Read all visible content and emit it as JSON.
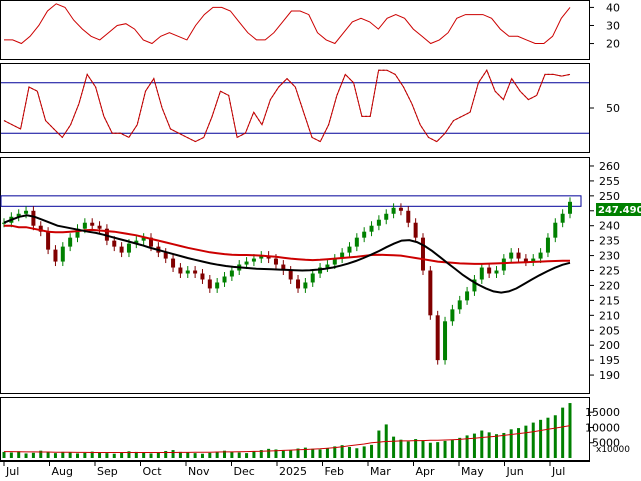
{
  "chart_data": {
    "type": "candlestick",
    "colors": {
      "up": "#008000",
      "down": "#800000",
      "ma_short": "#cc0000",
      "ma_long": "#000000",
      "indicator": "#cc0000",
      "bands": "#000099",
      "price_label_bg": "#008000",
      "price_label_text": "#ffffff",
      "grid": "#000000"
    },
    "months": [
      "Jul",
      "Aug",
      "Sep",
      "Oct",
      "Nov",
      "Dec",
      "2025",
      "Feb",
      "Mar",
      "Apr",
      "May",
      "Jun",
      "Jul"
    ],
    "last_price": "247.4900",
    "panels": {
      "rsi_top": {
        "ticks": [
          20,
          30,
          40
        ],
        "ylim": [
          12,
          43
        ],
        "values": [
          22,
          22,
          20,
          24,
          30,
          38,
          42,
          40,
          33,
          28,
          24,
          22,
          26,
          30,
          31,
          28,
          22,
          20,
          24,
          26,
          24,
          22,
          30,
          36,
          40,
          40,
          38,
          32,
          26,
          22,
          22,
          26,
          32,
          38,
          38,
          36,
          26,
          22,
          20,
          26,
          32,
          34,
          32,
          28,
          34,
          36,
          34,
          28,
          24,
          20,
          22,
          26,
          34,
          36,
          36,
          36,
          34,
          28,
          24,
          24,
          22,
          20,
          20,
          24,
          34,
          40
        ]
      },
      "stoch": {
        "ticks": [
          50
        ],
        "ylim": [
          0,
          100
        ],
        "bands": [
          80,
          20
        ],
        "values": [
          35,
          30,
          25,
          75,
          70,
          35,
          25,
          15,
          30,
          55,
          90,
          75,
          40,
          20,
          20,
          15,
          30,
          70,
          85,
          50,
          25,
          20,
          15,
          10,
          15,
          40,
          70,
          65,
          15,
          20,
          45,
          30,
          60,
          75,
          85,
          75,
          45,
          15,
          10,
          30,
          65,
          90,
          80,
          40,
          40,
          95,
          95,
          90,
          75,
          55,
          30,
          15,
          10,
          20,
          35,
          40,
          45,
          80,
          95,
          70,
          60,
          85,
          70,
          60,
          65,
          90,
          90,
          88,
          90
        ]
      },
      "price": {
        "ticks": [
          190,
          195,
          200,
          205,
          210,
          215,
          220,
          225,
          230,
          235,
          240,
          245,
          250,
          255,
          260
        ],
        "ylim": [
          185,
          262
        ],
        "resistance_band": [
          246.5,
          250
        ],
        "ohlc_scale_note": "",
        "closes": [
          241,
          243,
          244,
          245,
          240,
          238,
          232,
          228,
          233,
          236,
          239,
          241,
          240,
          239,
          235,
          233,
          231,
          234,
          235,
          236,
          233,
          231,
          229,
          226,
          224,
          225,
          224,
          222,
          219,
          221,
          223,
          225,
          227,
          228,
          229,
          230,
          229,
          227,
          225,
          222,
          219,
          221,
          224,
          226,
          227,
          229,
          231,
          233,
          236,
          238,
          240,
          242,
          244,
          246,
          245,
          241,
          236,
          225,
          210,
          195,
          208,
          212,
          215,
          218,
          222,
          226,
          224,
          225,
          229,
          231,
          229,
          228,
          229,
          231,
          236,
          241,
          244,
          248
        ],
        "ma_short": [
          240,
          240,
          239.5,
          239.5,
          239,
          238.5,
          238,
          237.8,
          237.8,
          238,
          238.2,
          238.5,
          238.6,
          238.4,
          238.2,
          238,
          237.6,
          237.2,
          236.8,
          236.2,
          235.6,
          235,
          234.4,
          233.8,
          233.2,
          232.6,
          232.1,
          231.6,
          231.1,
          230.8,
          230.5,
          230.3,
          230.2,
          230.2,
          230.1,
          230,
          229.8,
          229.6,
          229.3,
          229,
          228.8,
          228.6,
          228.5,
          228.6,
          228.8,
          229,
          229.2,
          229.4,
          229.6,
          229.9,
          230.2,
          230.3,
          230.2,
          230.1,
          230,
          229.6,
          229.2,
          228.8,
          228.4,
          228,
          227.8,
          227.6,
          227.4,
          227.3,
          227.2,
          227.2,
          227.3,
          227.4,
          227.5,
          227.6,
          227.7,
          227.8,
          227.9,
          228,
          228.1,
          228.2,
          228.3,
          228.3
        ],
        "ma_long": [
          241,
          242,
          243,
          243.5,
          243,
          242,
          241,
          240,
          239.5,
          239,
          238.5,
          238,
          237.6,
          237,
          236.3,
          235.6,
          234.9,
          234.2,
          233.5,
          232.7,
          232,
          231.3,
          230.6,
          229.9,
          229.2,
          228.6,
          228,
          227.4,
          226.9,
          226.5,
          226.2,
          226,
          225.8,
          225.6,
          225.5,
          225.4,
          225.3,
          225.2,
          225.1,
          225,
          225.1,
          225.3,
          225.6,
          226,
          226.6,
          227.3,
          228.2,
          229.2,
          230.3,
          231.5,
          232.8,
          234,
          235,
          235.2,
          234.5,
          233.2,
          231.5,
          229.5,
          227.5,
          225.5,
          223.5,
          221.8,
          220.3,
          219,
          218,
          217.6,
          218,
          219,
          220.5,
          222,
          223.4,
          224.7,
          225.9,
          226.9,
          227.6
        ],
        "volume_ticks": [
          5000,
          10000,
          15000
        ],
        "volume_unit": "x10000",
        "volume_ylim": [
          0,
          19000
        ],
        "volume": [
          2000,
          1800,
          2200,
          1500,
          1700,
          2400,
          1900,
          1600,
          2000,
          1800,
          1500,
          1700,
          2100,
          1900,
          1600,
          1400,
          1800,
          2200,
          2000,
          1700,
          1500,
          1900,
          2300,
          2600,
          2000,
          1800,
          1600,
          1400,
          1700,
          2100,
          2400,
          2000,
          1800,
          1600,
          2200,
          2600,
          3000,
          2800,
          2400,
          2600,
          3100,
          3400,
          3000,
          2800,
          3200,
          3800,
          4200,
          3600,
          3200,
          3800,
          4300,
          9000,
          11000,
          7000,
          6000,
          5400,
          6200,
          5800,
          5000,
          5200,
          5600,
          6000,
          6600,
          7400,
          8000,
          9000,
          8400,
          7800,
          8200,
          9400,
          9800,
          10600,
          11600,
          12500,
          13200,
          14000,
          16500,
          18000
        ],
        "volume_ma": [
          2100,
          2100,
          2050,
          2000,
          2000,
          1950,
          1950,
          1900,
          1900,
          1900,
          1850,
          1850,
          1800,
          1800,
          1800,
          1800,
          1800,
          1800,
          1800,
          1800,
          1800,
          1800,
          1800,
          1800,
          1850,
          1850,
          1900,
          1900,
          1900,
          1950,
          2000,
          2000,
          2050,
          2100,
          2150,
          2200,
          2300,
          2400,
          2500,
          2600,
          2700,
          2800,
          2900,
          3000,
          3200,
          3400,
          3700,
          4000,
          4300,
          4600,
          5000,
          5200,
          5400,
          5500,
          5600,
          5600,
          5700,
          5700,
          5800,
          5800,
          5900,
          6000,
          6100,
          6300,
          6500,
          6700,
          6900,
          7100,
          7400,
          7700,
          8000,
          8300,
          8600,
          9000,
          9400,
          9800,
          10200,
          10600
        ]
      }
    }
  }
}
